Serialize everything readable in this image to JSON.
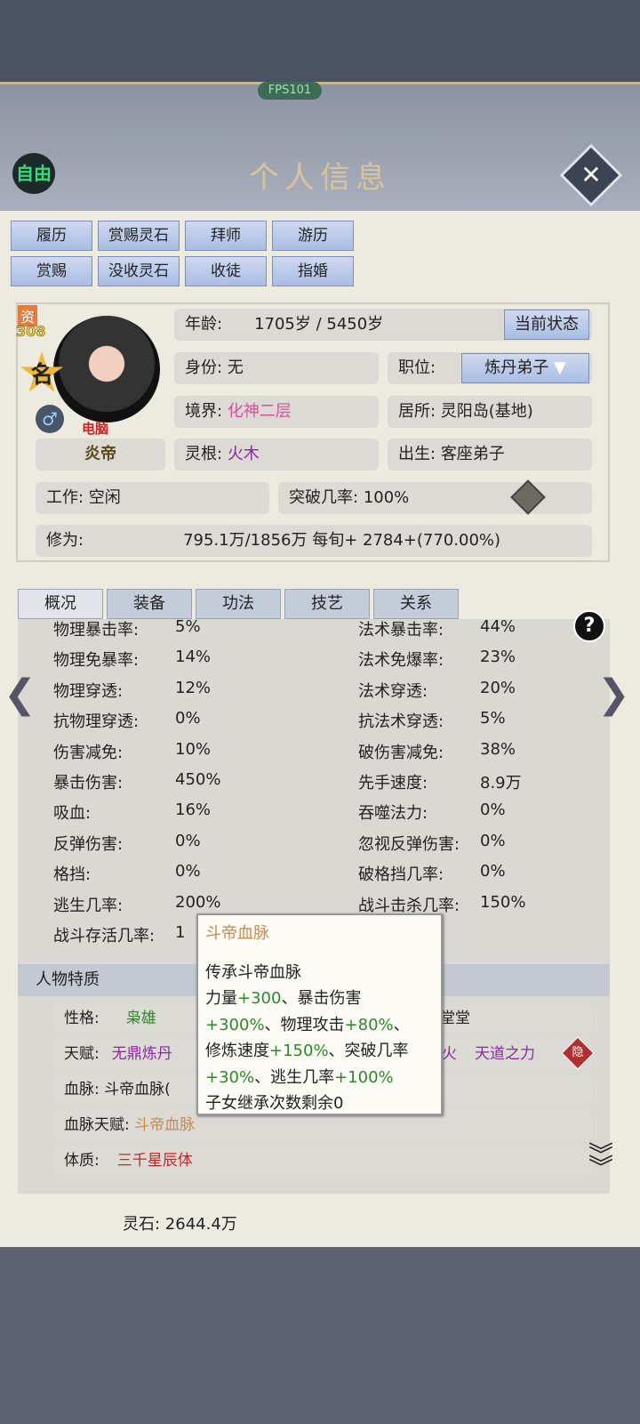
{
  "fps": "FPS101",
  "free_badge": "自由",
  "title": "个人信息",
  "close_icon": "close-icon",
  "actions": [
    "履历",
    "赏赐灵石",
    "拜师",
    "游历",
    "赏赐",
    "没收灵石",
    "收徒",
    "指婚"
  ],
  "profile": {
    "aptitude_label": "资",
    "aptitude": "308",
    "fame": "名",
    "gender_icon": "male-icon",
    "controller": "电脑",
    "name": "炎帝",
    "age_label": "年龄:",
    "age": "1705岁 / 5450岁",
    "status_button": "当前状态",
    "identity_label": "身份:",
    "identity": "无",
    "position_label": "职位:",
    "position": "炼丹弟子",
    "realm_label": "境界:",
    "realm": "化神二层",
    "residence": "居所: 灵阳岛(基地)",
    "root_label": "灵根:",
    "root": "火木",
    "birth_label": "出生:",
    "birth": "客座弟子",
    "work": "工作: 空闲",
    "breakthrough_label": "突破几率:",
    "breakthrough": "100%",
    "cultivation_label": "修为:",
    "cultivation": "795.1万/1856万  每旬+  2784+(770.00%)"
  },
  "tabs": [
    "概况",
    "装备",
    "功法",
    "技艺",
    "关系"
  ],
  "stats_left": [
    [
      "物理暴击率:",
      "5%"
    ],
    [
      "物理免暴率:",
      "14%"
    ],
    [
      "物理穿透:",
      "12%"
    ],
    [
      "抗物理穿透:",
      "0%"
    ],
    [
      "伤害减免:",
      "10%"
    ],
    [
      "暴击伤害:",
      "450%"
    ],
    [
      "吸血:",
      "16%"
    ],
    [
      "反弹伤害:",
      "0%"
    ],
    [
      "格挡:",
      "0%"
    ],
    [
      "逃生几率:",
      "200%"
    ],
    [
      "战斗存活几率:",
      "1"
    ]
  ],
  "stats_right": [
    [
      "法术暴击率:",
      "44%"
    ],
    [
      "法术免爆率:",
      "23%"
    ],
    [
      "法术穿透:",
      "20%"
    ],
    [
      "抗法术穿透:",
      "5%"
    ],
    [
      "破伤害减免:",
      "38%"
    ],
    [
      "先手速度:",
      "8.9万"
    ],
    [
      "吞噬法力:",
      "0%"
    ],
    [
      "忽视反弹伤害:",
      "0%"
    ],
    [
      "破格挡几率:",
      "0%"
    ],
    [
      "战斗击杀几率:",
      "150%"
    ]
  ],
  "traits": {
    "header": "人物特质",
    "personality_label": "性格:",
    "personality": "枭雄",
    "personality_extra": "堂堂",
    "talent_label": "天赋:",
    "talent1": "无鼎炼丹",
    "talent2": "火",
    "talent3": "天道之力",
    "hidden_badge": "隐",
    "bloodline": "血脉: 斗帝血脉(",
    "bloodline_talent_label": "血脉天赋:",
    "bloodline_talent": "斗帝血脉",
    "physique_label": "体质:",
    "physique": "三千星辰体"
  },
  "tooltip": {
    "title": "斗帝血脉",
    "l1": "传承斗帝血脉",
    "l2a": "力量",
    "l2b": "+300",
    "l2c": "、暴击伤害",
    "l3a": "+300%",
    "l3b": "、物理攻击",
    "l3c": "+80%",
    "l3d": "、",
    "l4a": "修炼速度",
    "l4b": "+150%",
    "l4c": "、突破几率",
    "l5a": "+30%",
    "l5b": "、逃生几率",
    "l5c": "+100%",
    "l6": "子女继承次数剩余0"
  },
  "spirit_stones": "灵石: 2644.4万",
  "colors": {
    "button": "#b9c9ea",
    "panel": "#edeae0",
    "green": "#2a8a2a",
    "purple": "#8a2aa0"
  }
}
